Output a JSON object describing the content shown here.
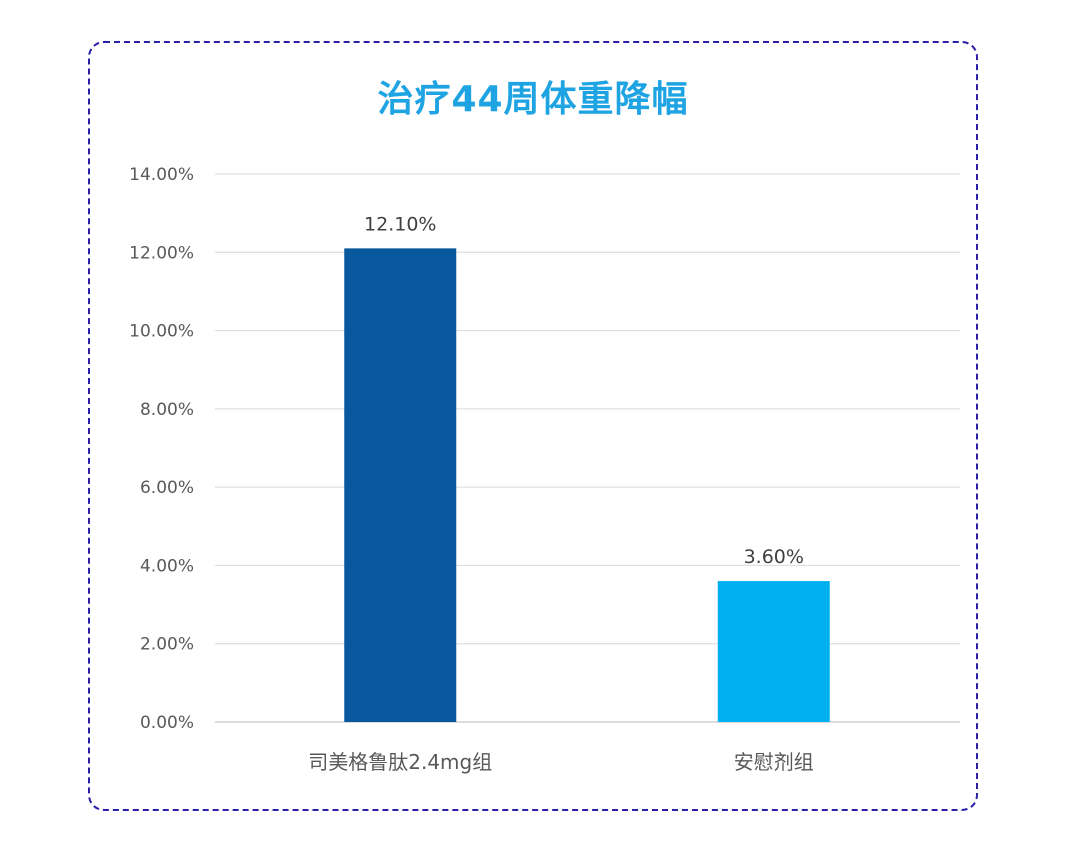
{
  "chart_data": {
    "type": "bar",
    "title": "治疗44周体重降幅",
    "categories": [
      "司美格鲁肽2.4mg组",
      "安慰剂组"
    ],
    "values": [
      12.1,
      3.6
    ],
    "data_labels": [
      "12.10%",
      "3.60%"
    ],
    "bar_colors": [
      "#08589e",
      "#00b0f0"
    ],
    "ylim": [
      0,
      14
    ],
    "yticks": [
      0,
      2,
      4,
      6,
      8,
      10,
      12,
      14
    ],
    "ytick_labels": [
      "0.00%",
      "2.00%",
      "4.00%",
      "6.00%",
      "8.00%",
      "10.00%",
      "12.00%",
      "14.00%"
    ],
    "xlabel": "",
    "ylabel": "",
    "grid": true,
    "legend": false,
    "title_color": "#1ea3e3",
    "frame_color": "#2b1fa6"
  }
}
